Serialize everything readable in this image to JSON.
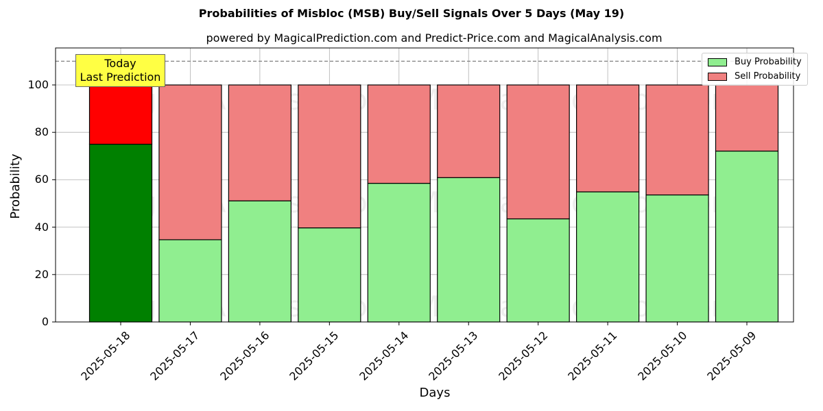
{
  "title": "Probabilities of Misbloc (MSB) Buy/Sell Signals Over 5 Days (May 19)",
  "subtitle": "powered by MagicalPrediction.com and Predict-Price.com and MagicalAnalysis.com",
  "annotation": {
    "line1": "Today",
    "line2": "Last Prediction"
  },
  "legend": {
    "buy": "Buy Probability",
    "sell": "Sell Probability"
  },
  "colors": {
    "buy": "#90ee90",
    "sell": "#f08080",
    "today_buy": "#008000",
    "today_sell": "#ff0000",
    "annotation_bg": "#ffff44",
    "grid": "#b0b0b0"
  },
  "watermarks": [
    "MagicalAnalysis.com",
    "MagicalPrediction.com"
  ],
  "chart_data": {
    "type": "bar",
    "stacked": true,
    "title": "Probabilities of Misbloc (MSB) Buy/Sell Signals Over 5 Days (May 19)",
    "subtitle": "powered by MagicalPrediction.com and Predict-Price.com and MagicalAnalysis.com",
    "xlabel": "Days",
    "ylabel": "Probability",
    "ylim": [
      0,
      115
    ],
    "yticks": [
      0,
      20,
      40,
      60,
      80,
      100
    ],
    "grid": true,
    "legend_position": "upper right",
    "threshold_line": 110,
    "categories": [
      "2025-05-18",
      "2025-05-17",
      "2025-05-16",
      "2025-05-15",
      "2025-05-14",
      "2025-05-13",
      "2025-05-12",
      "2025-05-11",
      "2025-05-10",
      "2025-05-09"
    ],
    "series": [
      {
        "name": "Buy Probability",
        "values": [
          75.0,
          34.7,
          51.1,
          39.7,
          58.5,
          60.9,
          43.5,
          54.9,
          53.6,
          72.1
        ]
      },
      {
        "name": "Sell Probability",
        "values": [
          25.0,
          65.3,
          48.9,
          60.3,
          41.5,
          39.1,
          56.5,
          45.1,
          46.4,
          27.9
        ]
      }
    ],
    "annotations": [
      {
        "text": "Today\nLast Prediction",
        "x": "2025-05-18"
      }
    ]
  }
}
